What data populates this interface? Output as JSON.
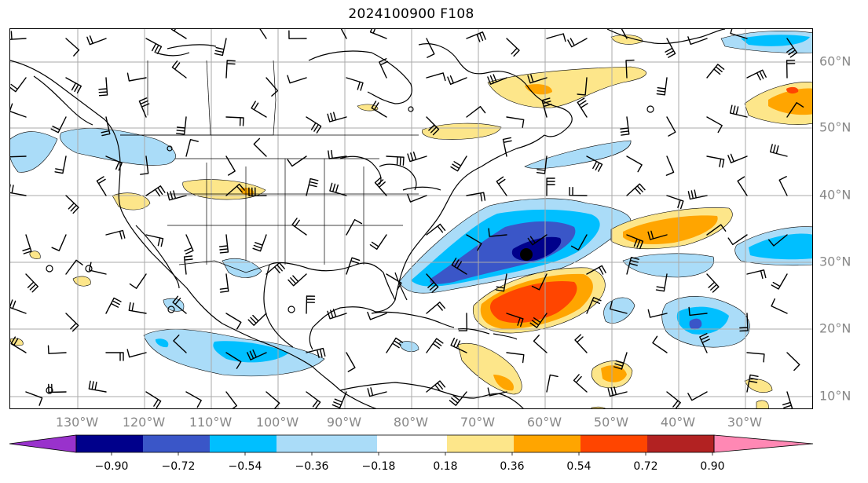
{
  "title": "2024100900 F108",
  "lon_labels": [
    "130°W",
    "120°W",
    "110°W",
    "100°W",
    "90°W",
    "80°W",
    "70°W",
    "60°W",
    "50°W",
    "40°W",
    "30°W"
  ],
  "lat_labels": [
    "60°N",
    "50°N",
    "40°N",
    "30°N",
    "20°N",
    "10°N"
  ],
  "colorbar": {
    "ticks": [
      "−0.90",
      "−0.72",
      "−0.54",
      "−0.36",
      "−0.18",
      "0.18",
      "0.36",
      "0.54",
      "0.72",
      "0.90"
    ],
    "colors": [
      "#9932cc",
      "#00008b",
      "#3a56c8",
      "#00bfff",
      "#aadcf8",
      "#ffffff",
      "#fde68a",
      "#ffa500",
      "#ff4500",
      "#b22222",
      "#ff88b4"
    ]
  },
  "shading_colors": {
    "neg_018": "#aadcf8",
    "neg_036": "#00bfff",
    "neg_054": "#3a56c8",
    "neg_072": "#00008b",
    "pos_018": "#fde68a",
    "pos_036": "#ffa500",
    "pos_054": "#ff4500"
  }
}
